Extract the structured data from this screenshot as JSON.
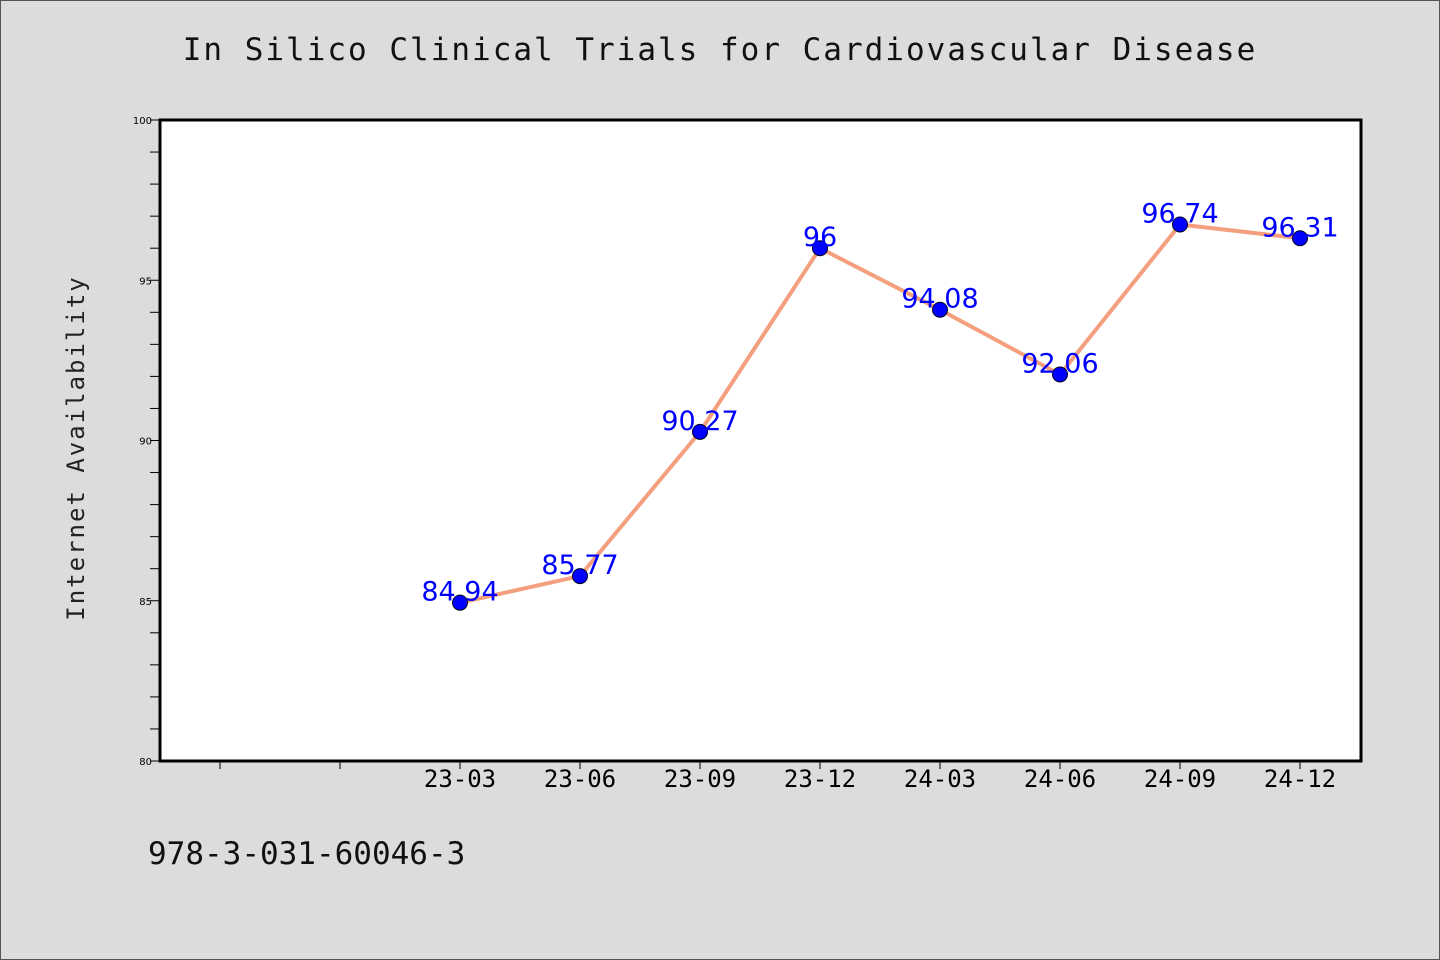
{
  "chart_data": {
    "type": "line",
    "title": "In Silico Clinical Trials for Cardiovascular Disease",
    "xlabel": "",
    "ylabel": "Internet Availability",
    "categories": [
      "23-03",
      "23-06",
      "23-09",
      "23-12",
      "24-03",
      "24-06",
      "24-09",
      "24-12"
    ],
    "values": [
      84.94,
      85.77,
      90.27,
      96,
      94.08,
      92.06,
      96.74,
      96.31
    ],
    "data_labels": [
      "84.94",
      "85.77",
      "90.27",
      "96",
      "94.08",
      "92.06",
      "96.74",
      "96.31"
    ],
    "ylim": [
      80,
      100
    ],
    "yticks": [
      "80",
      "85",
      "90",
      "95",
      "100"
    ],
    "grid": false,
    "legend": "none",
    "line_color": "#f4a07e",
    "marker_color": "#0000ff",
    "label_color": "#0000ff"
  },
  "footer": "978-3-031-60046-3"
}
